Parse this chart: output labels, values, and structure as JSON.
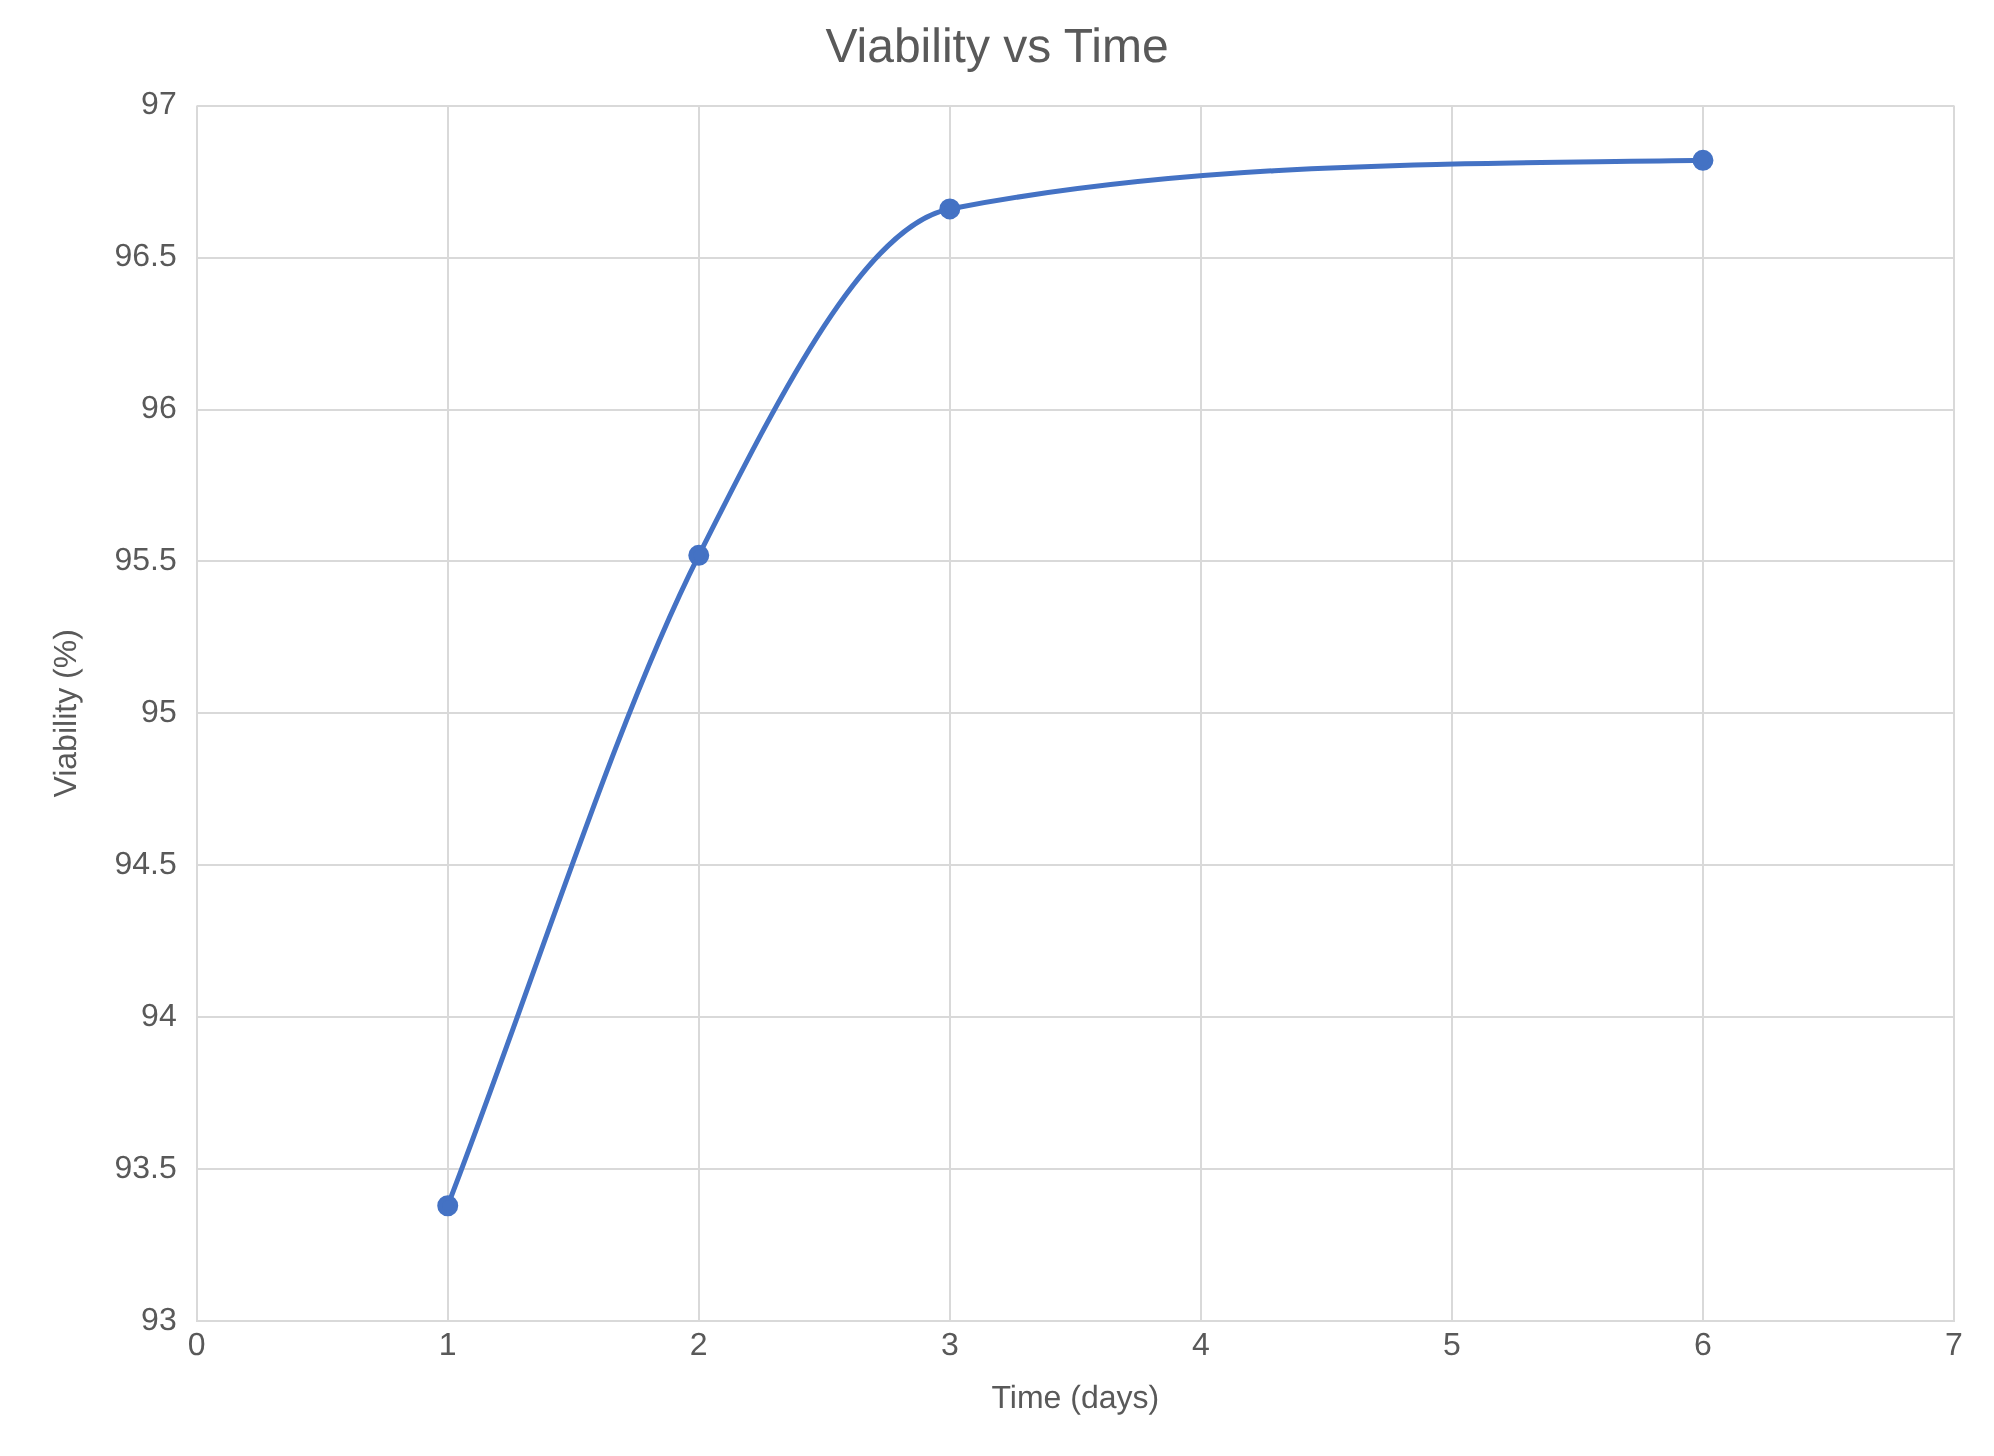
{
  "chart_data": {
    "type": "line",
    "title": "Viability vs Time",
    "xlabel": "Time (days)",
    "ylabel": "Viability (%)",
    "x": [
      1,
      2,
      3,
      6
    ],
    "series": [
      {
        "color": "#4472c4",
        "values": [
          93.38,
          95.52,
          96.66,
          96.82
        ]
      }
    ],
    "xlim": [
      0,
      7
    ],
    "xticks": [
      0,
      1,
      2,
      3,
      4,
      5,
      6,
      7
    ],
    "ylim": [
      93,
      97
    ],
    "yticks": [
      93,
      93.5,
      94,
      94.5,
      95,
      95.5,
      96,
      96.5,
      97
    ],
    "grid": true,
    "legend": false,
    "marker": "circle",
    "line_style": "solid"
  }
}
